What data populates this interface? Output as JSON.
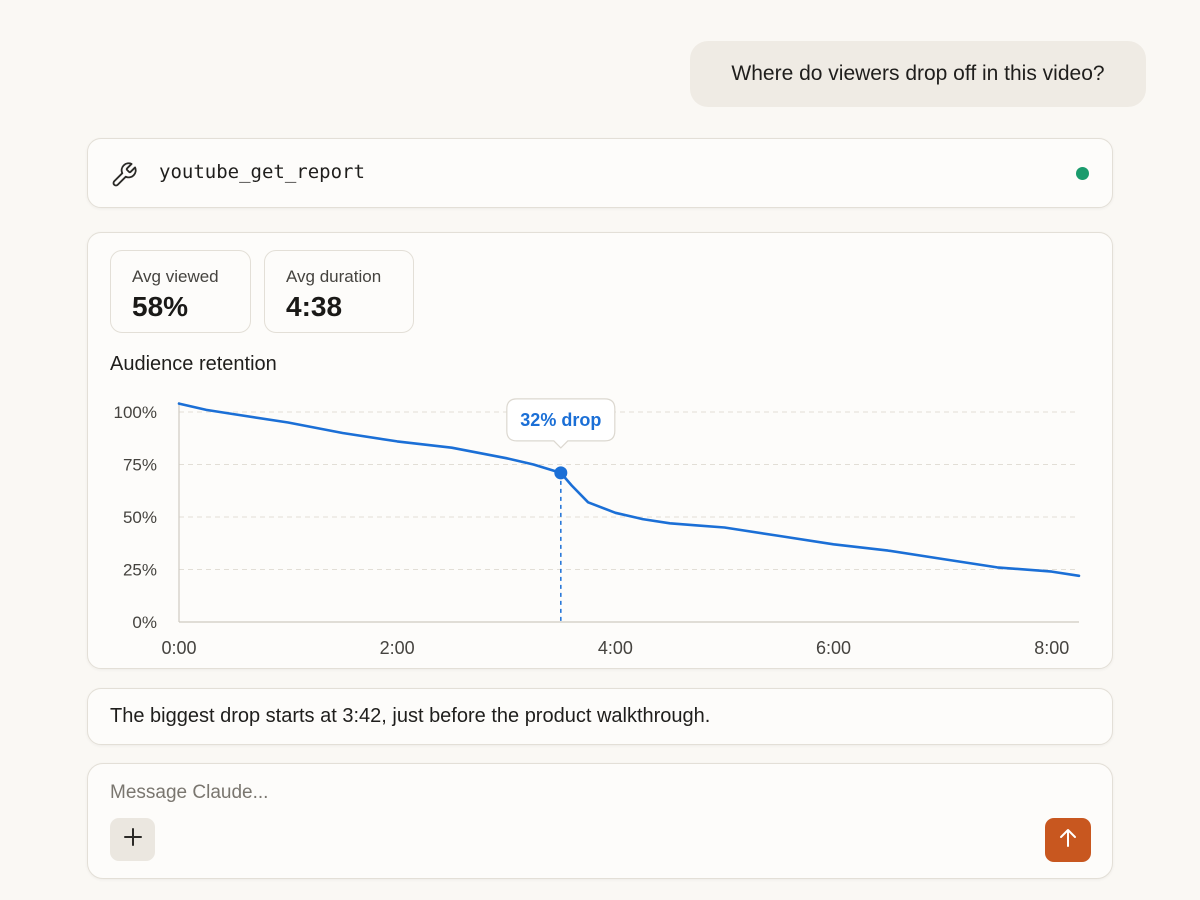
{
  "conversation": {
    "user_message": "Where do viewers drop off in this video?",
    "tool_call": {
      "icon": "wrench-icon",
      "name": "youtube_get_report",
      "status_color": "#1a9b6c"
    },
    "report": {
      "stats": [
        {
          "label": "Avg viewed",
          "value": "58%"
        },
        {
          "label": "Avg duration",
          "value": "4:38"
        }
      ],
      "chart_title": "Audience retention"
    },
    "assistant_message": "The biggest drop starts at 3:42, just before the product walkthrough."
  },
  "composer": {
    "placeholder": "Message Claude...",
    "add_icon": "plus-icon",
    "send_icon": "arrow-up-icon",
    "send_color": "#c8571f"
  },
  "chart_data": {
    "type": "line",
    "title": "Audience retention",
    "xlabel": "",
    "ylabel": "",
    "x_unit": "minutes",
    "xlim": [
      0,
      8.25
    ],
    "ylim": [
      0,
      100
    ],
    "x_ticks": [
      0,
      2,
      4,
      6,
      8
    ],
    "x_tick_labels": [
      "0:00",
      "2:00",
      "4:00",
      "6:00",
      "8:00"
    ],
    "y_ticks": [
      0,
      25,
      50,
      75,
      100
    ],
    "y_tick_labels": [
      "0%",
      "25%",
      "50%",
      "75%",
      "100%"
    ],
    "grid": true,
    "line_color": "#1b6fd6",
    "series": [
      {
        "x": [
          0,
          0.25,
          0.5,
          1.0,
          1.5,
          2.0,
          2.5,
          3.0,
          3.25,
          3.5,
          3.6,
          3.75,
          4.0,
          4.25,
          4.5,
          4.75,
          5.0,
          5.5,
          6.0,
          6.5,
          7.0,
          7.5,
          8.0,
          8.25
        ],
        "y": [
          104,
          101,
          99,
          95,
          90,
          86,
          83,
          78,
          75,
          71,
          65,
          57,
          52,
          49,
          47,
          46,
          45,
          41,
          37,
          34,
          30,
          26,
          24,
          22
        ]
      }
    ],
    "annotation": {
      "x": 3.5,
      "y": 71,
      "label": "32% drop"
    }
  }
}
